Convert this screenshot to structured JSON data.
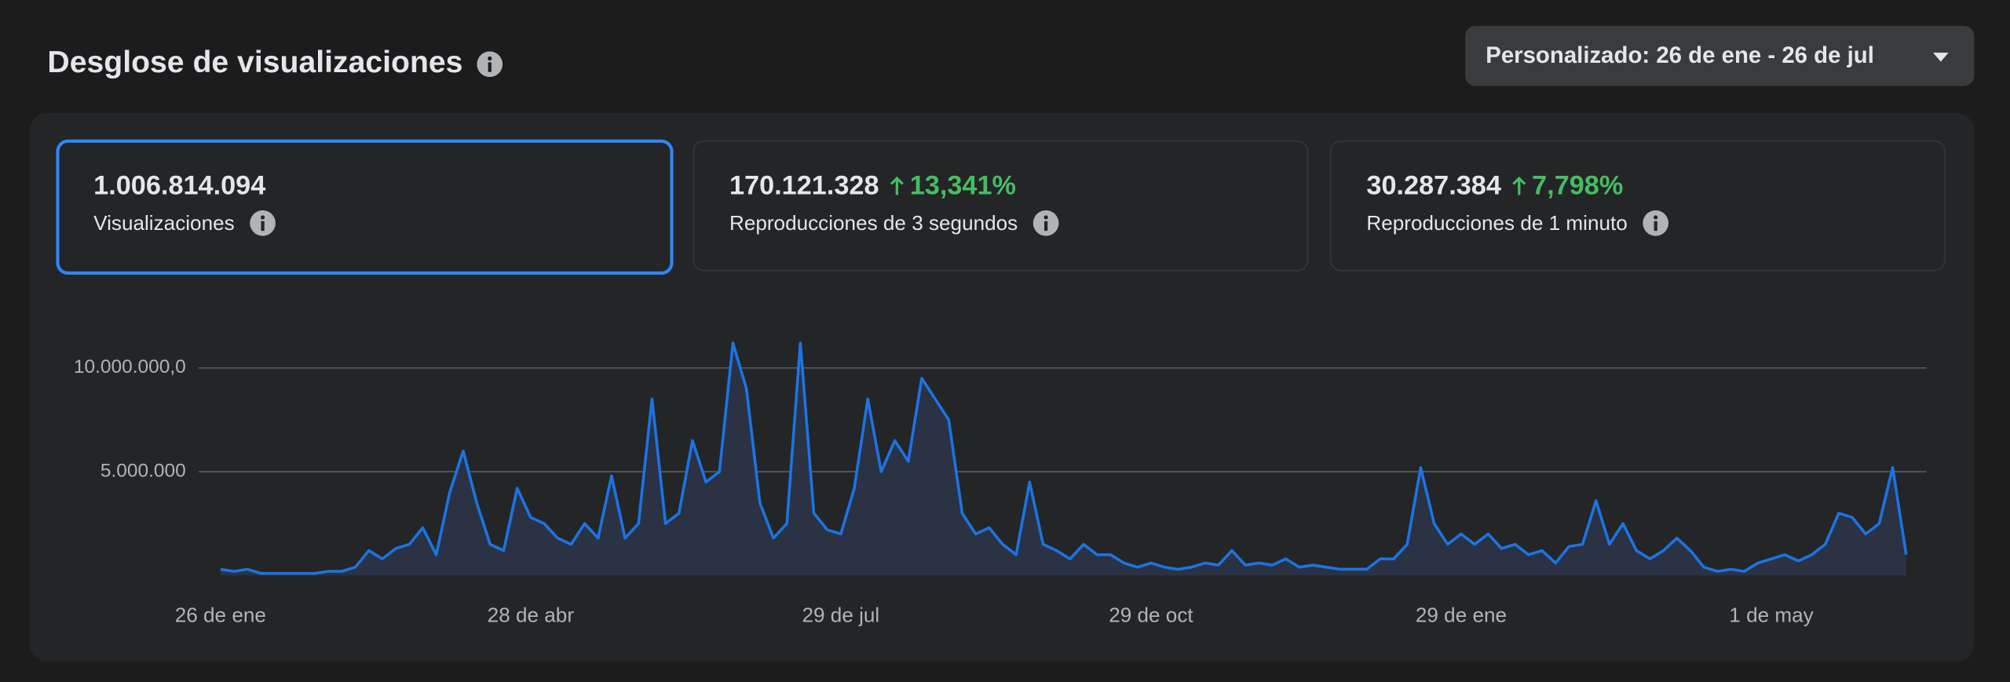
{
  "header": {
    "title": "Desglose de visualizaciones",
    "date_range": "Personalizado: 26 de ene - 26 de jul"
  },
  "metrics": [
    {
      "value": "1.006.814.094",
      "label": "Visualizaciones"
    },
    {
      "value": "170.121.328",
      "change": "13,341%",
      "label": "Reproducciones de 3 segundos"
    },
    {
      "value": "30.287.384",
      "change": "7,798%",
      "label": "Reproducciones de 1 minuto"
    }
  ],
  "chart_data": {
    "type": "line",
    "color": "#1b74e4",
    "categories": [
      "26 de ene",
      null,
      null,
      null,
      null,
      null,
      null,
      null,
      null,
      null,
      null,
      null,
      null,
      null,
      null,
      null,
      null,
      null,
      null,
      null,
      null,
      null,
      null,
      "28 de abr",
      null,
      null,
      null,
      null,
      null,
      null,
      null,
      null,
      null,
      null,
      null,
      null,
      null,
      null,
      null,
      null,
      null,
      null,
      null,
      null,
      null,
      null,
      "29 de jul",
      null,
      null,
      null,
      null,
      null,
      null,
      null,
      null,
      null,
      null,
      null,
      null,
      null,
      null,
      null,
      null,
      null,
      null,
      null,
      null,
      null,
      null,
      "29 de oct",
      null,
      null,
      null,
      null,
      null,
      null,
      null,
      null,
      null,
      null,
      null,
      null,
      null,
      null,
      null,
      null,
      null,
      null,
      null,
      null,
      null,
      null,
      "29 de ene",
      null,
      null,
      null,
      null,
      null,
      null,
      null,
      null,
      null,
      null,
      null,
      null,
      null,
      null,
      null,
      null,
      null,
      null,
      null,
      null,
      null,
      null,
      "1 de may",
      null,
      null,
      null,
      null,
      null,
      null,
      null,
      null,
      null,
      null
    ],
    "values": [
      300000,
      200000,
      300000,
      100000,
      100000,
      100000,
      100000,
      100000,
      200000,
      200000,
      400000,
      1200000,
      800000,
      1300000,
      1500000,
      2300000,
      1000000,
      4000000,
      6000000,
      3500000,
      1500000,
      1200000,
      4200000,
      2800000,
      2500000,
      1800000,
      1500000,
      2500000,
      1800000,
      4800000,
      1800000,
      2500000,
      8500000,
      2500000,
      3000000,
      6500000,
      4500000,
      5000000,
      11200000,
      9000000,
      3500000,
      1800000,
      2500000,
      11200000,
      3000000,
      2200000,
      2000000,
      4200000,
      8500000,
      5000000,
      6500000,
      5500000,
      9500000,
      8500000,
      7500000,
      3000000,
      2000000,
      2300000,
      1500000,
      1000000,
      4500000,
      1500000,
      1200000,
      800000,
      1500000,
      1000000,
      1000000,
      600000,
      400000,
      600000,
      400000,
      300000,
      400000,
      600000,
      500000,
      1200000,
      500000,
      600000,
      500000,
      800000,
      400000,
      500000,
      400000,
      300000,
      300000,
      300000,
      800000,
      800000,
      1500000,
      5200000,
      2500000,
      1500000,
      2000000,
      1500000,
      2000000,
      1300000,
      1500000,
      1000000,
      1200000,
      600000,
      1400000,
      1500000,
      3600000,
      1500000,
      2500000,
      1200000,
      800000,
      1200000,
      1800000,
      1200000,
      400000,
      200000,
      300000,
      200000,
      600000,
      800000,
      1000000,
      700000,
      1000000,
      1500000,
      3000000,
      2800000,
      2000000,
      2500000,
      5200000,
      1000000
    ],
    "ylim": [
      0,
      12000000
    ],
    "yticks": [
      {
        "value": 5000000,
        "label": "5.000.000"
      },
      {
        "value": 10000000,
        "label": "10.000.000,0"
      }
    ],
    "grid": true
  }
}
